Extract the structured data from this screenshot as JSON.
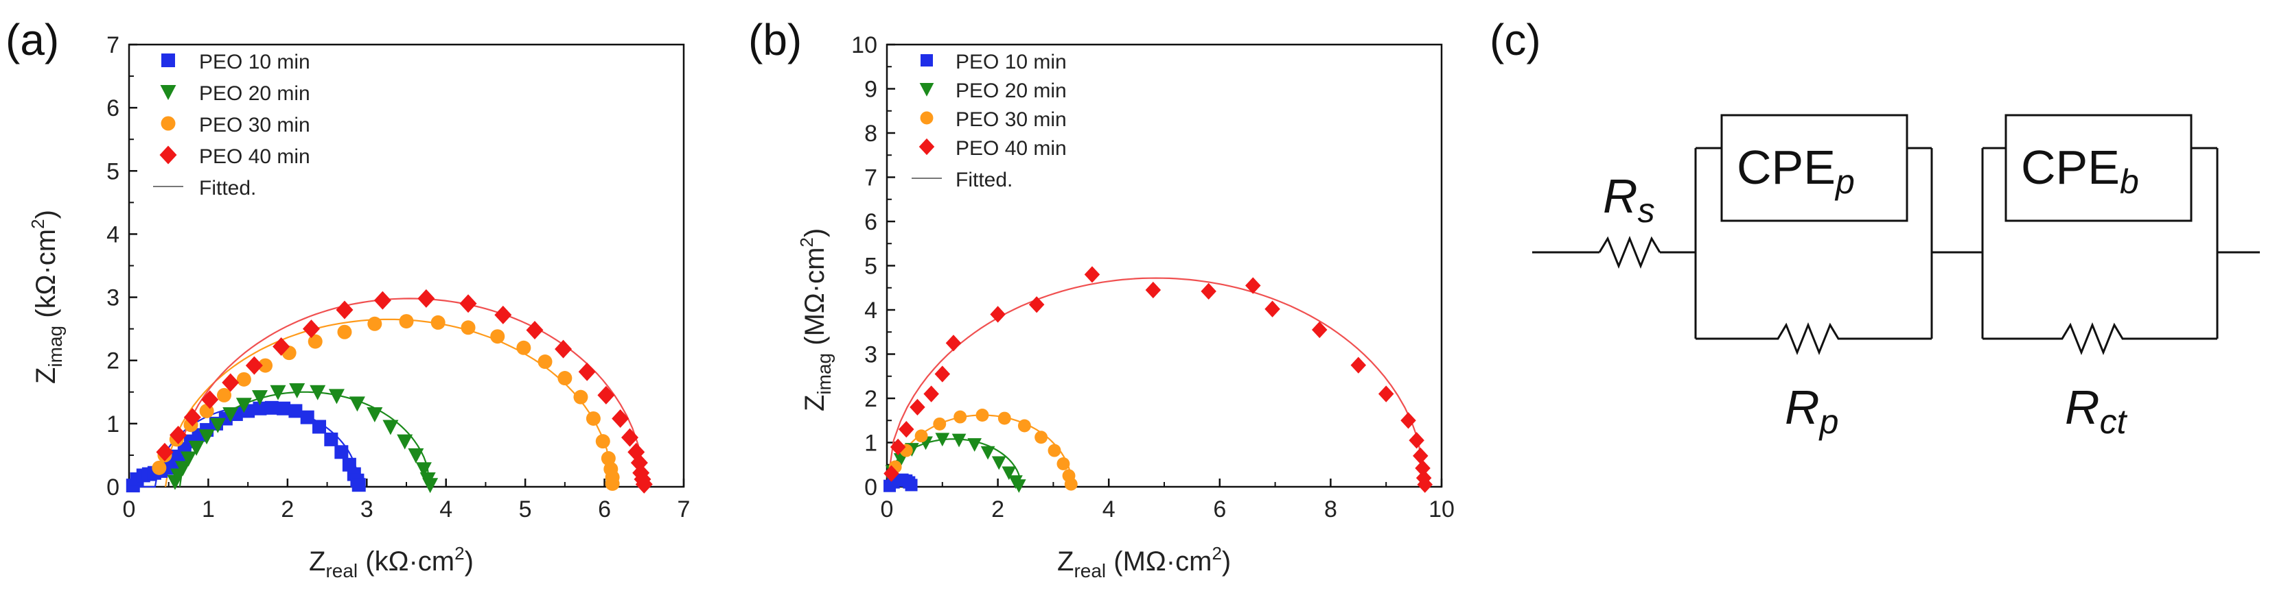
{
  "panels": {
    "a": "(a)",
    "b": "(b)",
    "c": "(c)"
  },
  "colors": {
    "s10": "#1f2ee8",
    "s20": "#1b8a1b",
    "s30": "#ff9a1a",
    "s40": "#f01818",
    "fit40": "#f05050"
  },
  "chart_data": [
    {
      "type": "scatter",
      "title": "",
      "xlabel": "Z",
      "xlabel_sub": "real",
      "xlabel_unit": " (kΩ·cm",
      "xlabel_sup": "2",
      "xlabel_close": ")",
      "ylabel": "Z",
      "ylabel_sub": "imag",
      "ylabel_unit": " (kΩ·cm",
      "ylabel_sup": "2",
      "ylabel_close": ")",
      "xlim": [
        0,
        7
      ],
      "ylim": [
        0,
        7
      ],
      "xticks": [
        "0",
        "1",
        "2",
        "3",
        "4",
        "5",
        "6",
        "7"
      ],
      "yticks": [
        "0",
        "1",
        "2",
        "3",
        "4",
        "5",
        "6",
        "7"
      ],
      "legend_position": "top-left",
      "legend": [
        "PEO 10 min",
        "PEO 20 min",
        "PEO 30 min",
        "PEO 40 min",
        "Fitted."
      ],
      "series": [
        {
          "name": "PEO 10 min",
          "marker": "square",
          "center": 1.62,
          "radius": 1.28,
          "xmin": 0.12,
          "xmax": 2.9,
          "ymax": 1.28,
          "points": [
            [
              0.05,
              0.02
            ],
            [
              0.1,
              0.12
            ],
            [
              0.18,
              0.18
            ],
            [
              0.25,
              0.2
            ],
            [
              0.32,
              0.22
            ],
            [
              0.4,
              0.25
            ],
            [
              0.48,
              0.3
            ],
            [
              0.55,
              0.38
            ],
            [
              0.62,
              0.48
            ],
            [
              0.7,
              0.6
            ],
            [
              0.78,
              0.72
            ],
            [
              0.88,
              0.82
            ],
            [
              0.98,
              0.9
            ],
            [
              1.1,
              1.0
            ],
            [
              1.22,
              1.08
            ],
            [
              1.35,
              1.15
            ],
            [
              1.5,
              1.2
            ],
            [
              1.65,
              1.24
            ],
            [
              1.8,
              1.25
            ],
            [
              1.95,
              1.24
            ],
            [
              2.1,
              1.2
            ],
            [
              2.25,
              1.1
            ],
            [
              2.4,
              0.95
            ],
            [
              2.55,
              0.75
            ],
            [
              2.68,
              0.55
            ],
            [
              2.78,
              0.35
            ],
            [
              2.84,
              0.2
            ],
            [
              2.88,
              0.1
            ],
            [
              2.9,
              0.03
            ]
          ]
        },
        {
          "name": "PEO 20 min",
          "marker": "triangle",
          "center": 2.22,
          "radius": 1.58,
          "xmin": 0.64,
          "xmax": 3.8,
          "ymax": 1.5,
          "points": [
            [
              0.58,
              0.08
            ],
            [
              0.62,
              0.18
            ],
            [
              0.68,
              0.3
            ],
            [
              0.75,
              0.45
            ],
            [
              0.85,
              0.62
            ],
            [
              0.98,
              0.8
            ],
            [
              1.12,
              0.98
            ],
            [
              1.28,
              1.15
            ],
            [
              1.45,
              1.3
            ],
            [
              1.65,
              1.42
            ],
            [
              1.88,
              1.5
            ],
            [
              2.12,
              1.53
            ],
            [
              2.38,
              1.5
            ],
            [
              2.62,
              1.44
            ],
            [
              2.88,
              1.32
            ],
            [
              3.1,
              1.15
            ],
            [
              3.3,
              0.95
            ],
            [
              3.48,
              0.72
            ],
            [
              3.62,
              0.5
            ],
            [
              3.72,
              0.28
            ],
            [
              3.77,
              0.12
            ],
            [
              3.8,
              0.03
            ]
          ]
        },
        {
          "name": "PEO 30 min",
          "marker": "circle",
          "center": 3.28,
          "radius": 2.82,
          "xmin": 0.46,
          "xmax": 6.1,
          "ymax": 2.65,
          "points": [
            [
              0.38,
              0.3
            ],
            [
              0.45,
              0.5
            ],
            [
              0.6,
              0.75
            ],
            [
              0.78,
              0.98
            ],
            [
              0.98,
              1.2
            ],
            [
              1.2,
              1.45
            ],
            [
              1.45,
              1.7
            ],
            [
              1.72,
              1.92
            ],
            [
              2.02,
              2.12
            ],
            [
              2.35,
              2.3
            ],
            [
              2.72,
              2.45
            ],
            [
              3.1,
              2.58
            ],
            [
              3.5,
              2.62
            ],
            [
              3.9,
              2.6
            ],
            [
              4.28,
              2.52
            ],
            [
              4.65,
              2.38
            ],
            [
              4.98,
              2.2
            ],
            [
              5.25,
              1.98
            ],
            [
              5.5,
              1.72
            ],
            [
              5.7,
              1.42
            ],
            [
              5.86,
              1.08
            ],
            [
              5.98,
              0.72
            ],
            [
              6.05,
              0.45
            ],
            [
              6.08,
              0.28
            ],
            [
              6.1,
              0.15
            ],
            [
              6.1,
              0.05
            ]
          ]
        },
        {
          "name": "PEO 40 min",
          "marker": "diamond",
          "center": 3.54,
          "radius": 2.96,
          "xmin": 0.58,
          "xmax": 6.5,
          "ymax": 2.98,
          "points": [
            [
              0.45,
              0.55
            ],
            [
              0.62,
              0.82
            ],
            [
              0.8,
              1.1
            ],
            [
              1.02,
              1.38
            ],
            [
              1.28,
              1.65
            ],
            [
              1.58,
              1.92
            ],
            [
              1.92,
              2.22
            ],
            [
              2.3,
              2.5
            ],
            [
              2.72,
              2.8
            ],
            [
              3.2,
              2.95
            ],
            [
              3.75,
              2.98
            ],
            [
              4.28,
              2.9
            ],
            [
              4.72,
              2.72
            ],
            [
              5.12,
              2.48
            ],
            [
              5.48,
              2.18
            ],
            [
              5.78,
              1.82
            ],
            [
              6.02,
              1.45
            ],
            [
              6.2,
              1.08
            ],
            [
              6.32,
              0.78
            ],
            [
              6.4,
              0.55
            ],
            [
              6.44,
              0.38
            ],
            [
              6.46,
              0.22
            ],
            [
              6.48,
              0.12
            ],
            [
              6.5,
              0.04
            ]
          ]
        }
      ]
    },
    {
      "type": "scatter",
      "title": "",
      "xlabel": "Z",
      "xlabel_sub": "real",
      "xlabel_unit": " (MΩ·cm",
      "xlabel_sup": "2",
      "xlabel_close": ")",
      "ylabel": "Z",
      "ylabel_sub": "imag",
      "ylabel_unit": " (MΩ·cm",
      "ylabel_sup": "2",
      "ylabel_close": ")",
      "xlim": [
        0,
        10
      ],
      "ylim": [
        0,
        10
      ],
      "xticks": [
        "0",
        "2",
        "4",
        "6",
        "8",
        "10"
      ],
      "yticks": [
        "0",
        "1",
        "2",
        "3",
        "4",
        "5",
        "6",
        "7",
        "8",
        "9",
        "10"
      ],
      "legend_position": "top-left",
      "legend": [
        "PEO 10 min",
        "PEO 20 min",
        "PEO 30 min",
        "PEO 40 min",
        "Fitted."
      ],
      "series": [
        {
          "name": "PEO 10 min",
          "marker": "square",
          "center": 0.2,
          "radius": 0.2,
          "xmin": 0.0,
          "xmax": 0.45,
          "ymax": 0.18,
          "points": [
            [
              0.05,
              0.02
            ],
            [
              0.12,
              0.1
            ],
            [
              0.2,
              0.15
            ],
            [
              0.28,
              0.16
            ],
            [
              0.35,
              0.14
            ],
            [
              0.4,
              0.1
            ],
            [
              0.44,
              0.04
            ]
          ]
        },
        {
          "name": "PEO 20 min",
          "marker": "triangle",
          "center": 1.2,
          "radius": 1.22,
          "xmin": 0.0,
          "xmax": 2.4,
          "ymax": 1.08,
          "points": [
            [
              0.1,
              0.35
            ],
            [
              0.25,
              0.62
            ],
            [
              0.45,
              0.85
            ],
            [
              0.7,
              1.0
            ],
            [
              1.0,
              1.08
            ],
            [
              1.3,
              1.06
            ],
            [
              1.58,
              0.96
            ],
            [
              1.82,
              0.78
            ],
            [
              2.02,
              0.55
            ],
            [
              2.2,
              0.32
            ],
            [
              2.32,
              0.12
            ],
            [
              2.38,
              0.03
            ]
          ]
        },
        {
          "name": "PEO 30 min",
          "marker": "circle",
          "center": 1.72,
          "radius": 1.62,
          "xmin": 0.1,
          "xmax": 3.35,
          "ymax": 1.62,
          "points": [
            [
              0.15,
              0.45
            ],
            [
              0.35,
              0.82
            ],
            [
              0.62,
              1.15
            ],
            [
              0.95,
              1.42
            ],
            [
              1.32,
              1.58
            ],
            [
              1.72,
              1.62
            ],
            [
              2.12,
              1.55
            ],
            [
              2.48,
              1.38
            ],
            [
              2.78,
              1.12
            ],
            [
              3.02,
              0.82
            ],
            [
              3.18,
              0.52
            ],
            [
              3.28,
              0.25
            ],
            [
              3.32,
              0.06
            ]
          ]
        },
        {
          "name": "PEO 40 min",
          "marker": "diamond",
          "center": 4.85,
          "radius": 4.85,
          "xmin": 0.0,
          "xmax": 9.7,
          "ymax": 4.72,
          "points": [
            [
              0.08,
              0.3
            ],
            [
              0.2,
              0.9
            ],
            [
              0.35,
              1.3
            ],
            [
              0.55,
              1.8
            ],
            [
              0.8,
              2.1
            ],
            [
              1.0,
              2.55
            ],
            [
              1.2,
              3.25
            ],
            [
              2.0,
              3.9
            ],
            [
              2.7,
              4.12
            ],
            [
              3.7,
              4.8
            ],
            [
              4.8,
              4.45
            ],
            [
              5.8,
              4.42
            ],
            [
              6.6,
              4.55
            ],
            [
              6.95,
              4.02
            ],
            [
              7.8,
              3.55
            ],
            [
              8.5,
              2.75
            ],
            [
              9.0,
              2.1
            ],
            [
              9.4,
              1.5
            ],
            [
              9.55,
              1.05
            ],
            [
              9.62,
              0.7
            ],
            [
              9.66,
              0.42
            ],
            [
              9.68,
              0.2
            ],
            [
              9.7,
              0.05
            ]
          ]
        }
      ]
    }
  ],
  "circuit": {
    "rs": "R",
    "rs_sub": "s",
    "cpe_p": "CPE",
    "cpe_p_sub": "p",
    "cpe_b": "CPE",
    "cpe_b_sub": "b",
    "rp": "R",
    "rp_sub": "p",
    "rct": "R",
    "rct_sub": "ct"
  }
}
